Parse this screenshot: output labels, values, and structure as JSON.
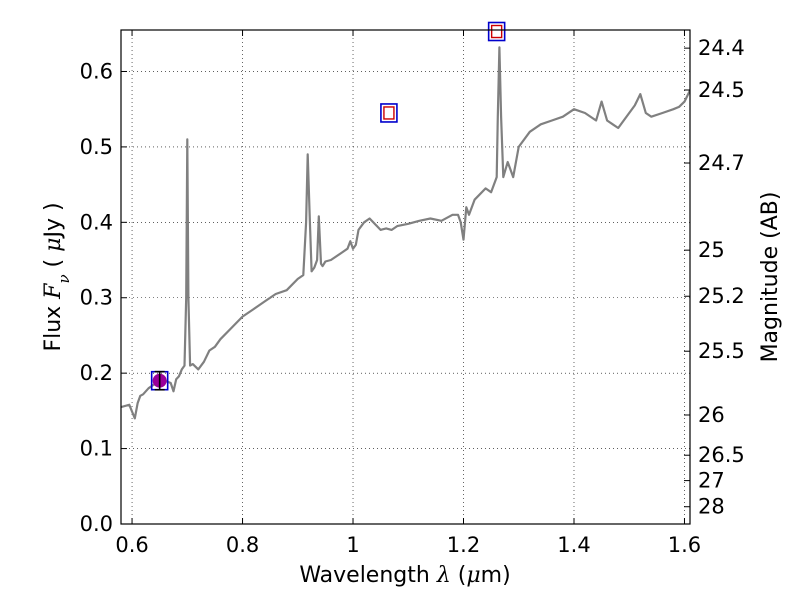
{
  "chart_data": {
    "type": "line",
    "xlabel_parts": {
      "pre": "Wavelength  ",
      "sym": "λ",
      "post": " (",
      "mu": "μ",
      "unit": "m)"
    },
    "ylabel_parts": {
      "pre": "Flux  ",
      "sym": "F",
      "sub": "ν",
      "post": "  ( ",
      "mu": "μ",
      "unit": "Jy )"
    },
    "y2label": "Magnitude (AB)",
    "xlim": [
      0.58,
      1.61
    ],
    "ylim": [
      0.0,
      0.655
    ],
    "x_ticks": [
      {
        "value": 0.6,
        "label": "0.6"
      },
      {
        "value": 0.8,
        "label": "0.8"
      },
      {
        "value": 1.0,
        "label": "1"
      },
      {
        "value": 1.2,
        "label": "1.2"
      },
      {
        "value": 1.4,
        "label": "1.4"
      },
      {
        "value": 1.6,
        "label": "1.6"
      }
    ],
    "y_ticks": [
      {
        "value": 0.0,
        "label": "0.0"
      },
      {
        "value": 0.1,
        "label": "0.1"
      },
      {
        "value": 0.2,
        "label": "0.2"
      },
      {
        "value": 0.3,
        "label": "0.3"
      },
      {
        "value": 0.4,
        "label": "0.4"
      },
      {
        "value": 0.5,
        "label": "0.5"
      },
      {
        "value": 0.6,
        "label": "0.6"
      }
    ],
    "y2_ticks": [
      {
        "mag": 24.4,
        "label": "24.4"
      },
      {
        "mag": 24.5,
        "label": "24.5"
      },
      {
        "mag": 24.7,
        "label": "24.7"
      },
      {
        "mag": 25,
        "label": "25"
      },
      {
        "mag": 25.2,
        "label": "25.2"
      },
      {
        "mag": 25.5,
        "label": "25.5"
      },
      {
        "mag": 26,
        "label": "26"
      },
      {
        "mag": 26.5,
        "label": "26.5"
      },
      {
        "mag": 27,
        "label": "27"
      },
      {
        "mag": 28,
        "label": "28"
      }
    ],
    "grid": true,
    "series": [
      {
        "color": "#808080",
        "x": [
          0.58,
          0.595,
          0.605,
          0.61,
          0.615,
          0.62,
          0.63,
          0.64,
          0.65,
          0.66,
          0.67,
          0.675,
          0.68,
          0.685,
          0.69,
          0.695,
          0.698,
          0.7,
          0.702,
          0.705,
          0.71,
          0.72,
          0.73,
          0.74,
          0.75,
          0.76,
          0.78,
          0.8,
          0.82,
          0.84,
          0.86,
          0.88,
          0.9,
          0.91,
          0.915,
          0.918,
          0.922,
          0.925,
          0.93,
          0.935,
          0.938,
          0.942,
          0.945,
          0.95,
          0.96,
          0.98,
          0.99,
          0.995,
          1.0,
          1.005,
          1.01,
          1.02,
          1.03,
          1.05,
          1.06,
          1.07,
          1.08,
          1.1,
          1.12,
          1.14,
          1.16,
          1.18,
          1.19,
          1.195,
          1.2,
          1.205,
          1.21,
          1.22,
          1.24,
          1.25,
          1.26,
          1.262,
          1.265,
          1.268,
          1.272,
          1.28,
          1.29,
          1.3,
          1.32,
          1.34,
          1.36,
          1.38,
          1.4,
          1.42,
          1.44,
          1.45,
          1.46,
          1.47,
          1.48,
          1.5,
          1.51,
          1.52,
          1.53,
          1.54,
          1.56,
          1.58,
          1.59,
          1.6,
          1.61
        ],
        "y": [
          0.155,
          0.158,
          0.14,
          0.16,
          0.17,
          0.172,
          0.18,
          0.185,
          0.188,
          0.19,
          0.187,
          0.176,
          0.192,
          0.196,
          0.205,
          0.21,
          0.3,
          0.51,
          0.3,
          0.21,
          0.212,
          0.205,
          0.215,
          0.23,
          0.235,
          0.245,
          0.26,
          0.275,
          0.285,
          0.295,
          0.305,
          0.31,
          0.325,
          0.33,
          0.4,
          0.49,
          0.4,
          0.335,
          0.34,
          0.35,
          0.408,
          0.345,
          0.342,
          0.348,
          0.35,
          0.36,
          0.365,
          0.375,
          0.365,
          0.37,
          0.39,
          0.4,
          0.405,
          0.39,
          0.392,
          0.39,
          0.395,
          0.398,
          0.402,
          0.405,
          0.402,
          0.41,
          0.41,
          0.4,
          0.377,
          0.42,
          0.41,
          0.43,
          0.445,
          0.44,
          0.46,
          0.54,
          0.632,
          0.54,
          0.46,
          0.48,
          0.46,
          0.5,
          0.52,
          0.53,
          0.535,
          0.54,
          0.55,
          0.545,
          0.535,
          0.56,
          0.535,
          0.53,
          0.525,
          0.545,
          0.555,
          0.57,
          0.545,
          0.54,
          0.545,
          0.55,
          0.553,
          0.56,
          0.575
        ]
      }
    ],
    "photometry": [
      {
        "x": 0.65,
        "flux": 0.19,
        "yerr": 0.012,
        "marker": "circle",
        "fill": "#990099",
        "box_color": "#0000cc",
        "inner_color": "#cc0000"
      },
      {
        "x": 1.065,
        "flux": 0.545,
        "marker": "box",
        "box_color": "#0000cc",
        "inner_color": "#cc0000"
      },
      {
        "x": 1.26,
        "flux": 0.653,
        "marker": "box",
        "box_color": "#0000cc",
        "inner_color": "#cc0000"
      }
    ]
  }
}
